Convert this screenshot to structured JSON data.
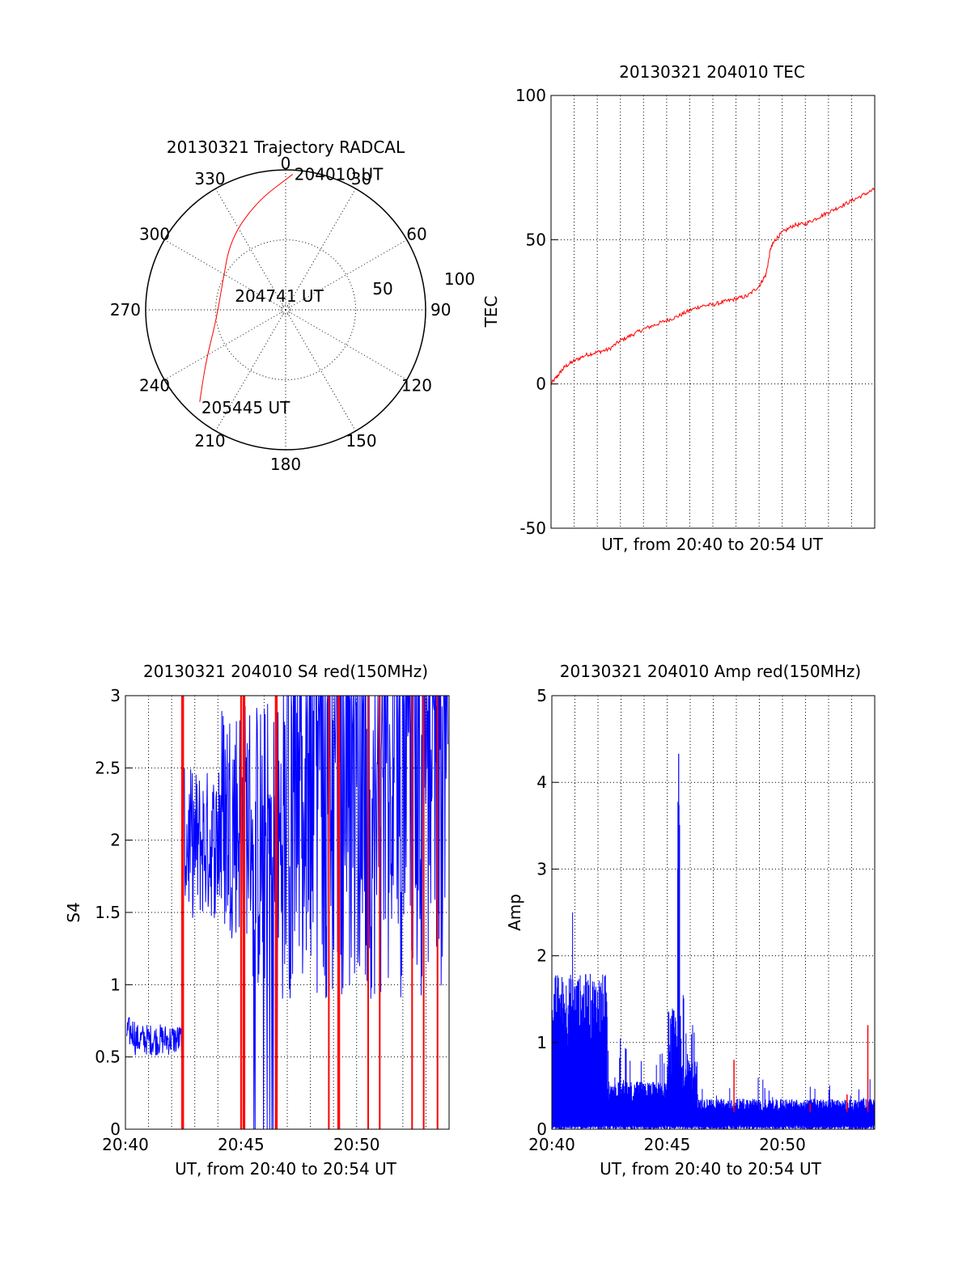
{
  "chart_data": [
    {
      "id": "trajectory",
      "type": "polar",
      "title": "20130321 Trajectory RADCAL",
      "azimuth_labels": [
        "0",
        "30",
        "60",
        "90",
        "120",
        "150",
        "180",
        "210",
        "240",
        "270",
        "300",
        "330"
      ],
      "radial_labels": [
        "50",
        "100"
      ],
      "radial_max": 100,
      "track": {
        "color": "#ff0000",
        "points": [
          {
            "az": 3,
            "r": 97
          },
          {
            "az": 345,
            "r": 80
          },
          {
            "az": 322,
            "r": 64
          },
          {
            "az": 293,
            "r": 49
          },
          {
            "az": 262,
            "r": 50
          },
          {
            "az": 237,
            "r": 68
          },
          {
            "az": 223,
            "r": 90
          }
        ],
        "annotations": [
          {
            "text": "204010 UT",
            "az": 3,
            "r": 97
          },
          {
            "text": "204741 UT",
            "az": 0,
            "r": 0
          },
          {
            "text": "205445 UT",
            "az": 223,
            "r": 90
          }
        ]
      }
    },
    {
      "id": "tec",
      "type": "line",
      "title": "20130321 204010 TEC",
      "xlabel": "UT, from 20:40 to 20:54 UT",
      "ylabel": "TEC",
      "ylim": [
        -50,
        100
      ],
      "xlim": [
        0,
        14
      ],
      "yticks": [
        "-50",
        "0",
        "50",
        "100"
      ],
      "series": [
        {
          "name": "TEC",
          "color": "#ff0000",
          "x": [
            0,
            0.3,
            0.6,
            1,
            1.5,
            2,
            2.5,
            3,
            3.5,
            4,
            4.5,
            5,
            5.5,
            6,
            6.5,
            7,
            7.5,
            8,
            8.5,
            9,
            9.3,
            9.5,
            9.7,
            10,
            10.5,
            11,
            11.5,
            12,
            12.5,
            13,
            13.5,
            14
          ],
          "values": [
            0,
            3,
            6,
            8,
            10,
            11,
            12,
            15,
            17,
            19,
            20.5,
            22,
            23.5,
            25.5,
            27,
            27.5,
            28.5,
            29.5,
            30.5,
            34,
            38,
            47,
            50,
            52.5,
            55,
            55.5,
            57.5,
            59.5,
            61.5,
            63.5,
            65.5,
            67.5
          ]
        }
      ]
    },
    {
      "id": "s4",
      "type": "line",
      "title": "20130321 204010 S4 red(150MHz)",
      "xlabel": "UT, from 20:40 to 20:54 UT",
      "ylabel": "S4",
      "ylim": [
        0,
        3
      ],
      "xlim": [
        0,
        14
      ],
      "xticks": [
        "20:40",
        "20:45",
        "20:50"
      ],
      "yticks": [
        "0",
        "0.5",
        "1",
        "1.5",
        "2",
        "2.5",
        "3"
      ],
      "series": [
        {
          "name": "S4 blue",
          "color": "#0000ff"
        },
        {
          "name": "S4 red",
          "color": "#ff0000"
        }
      ]
    },
    {
      "id": "amp",
      "type": "line",
      "title": "20130321 204010 Amp red(150MHz)",
      "xlabel": "UT, from 20:40 to 20:54 UT",
      "ylabel": "Amp",
      "ylim": [
        0,
        5
      ],
      "xlim": [
        0,
        14
      ],
      "xticks": [
        "20:40",
        "20:45",
        "20:50"
      ],
      "yticks": [
        "0",
        "1",
        "2",
        "3",
        "4",
        "5"
      ],
      "series": [
        {
          "name": "Amp blue",
          "color": "#0000ff"
        },
        {
          "name": "Amp red",
          "color": "#ff0000"
        }
      ]
    }
  ]
}
